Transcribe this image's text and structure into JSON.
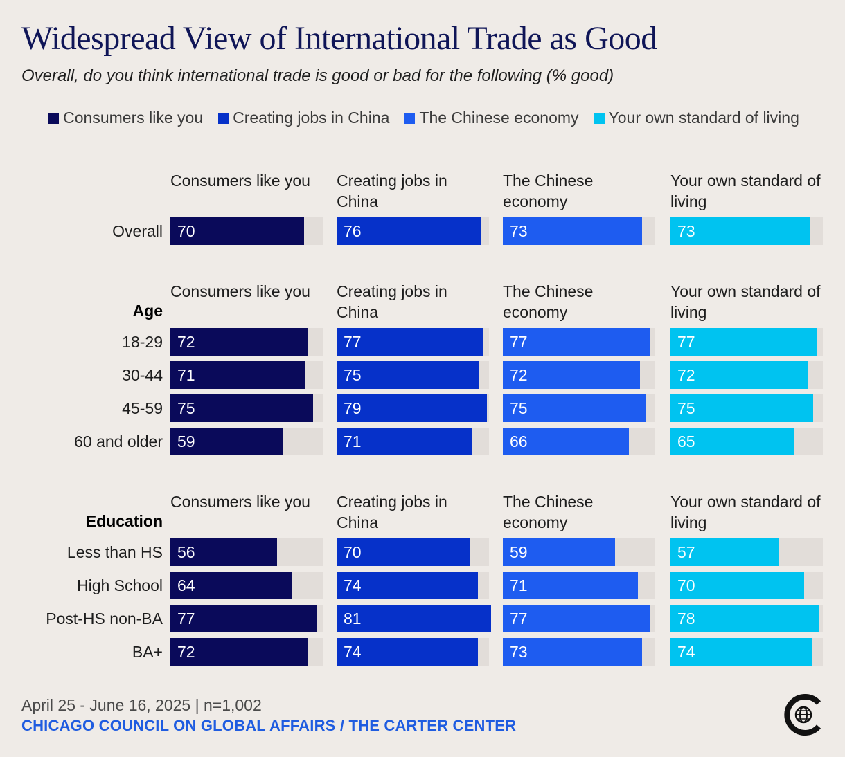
{
  "title": "Widespread View of International Trade as Good",
  "subtitle": "Overall, do you think international trade is good or bad for the following (% good)",
  "legend": [
    {
      "label": "Consumers like you",
      "color": "#0a0a5a"
    },
    {
      "label": "Creating jobs in China",
      "color": "#0631c9"
    },
    {
      "label": "The Chinese economy",
      "color": "#1e5cf0"
    },
    {
      "label": "Your own standard of living",
      "color": "#00c3f0"
    }
  ],
  "column_headers": [
    "Consumers like you",
    "Creating jobs in China",
    "The Chinese economy",
    "Your own standard of living"
  ],
  "footer": {
    "date": "April 25 - June 16, 2025 | n=1,002",
    "source": "CHICAGO COUNCIL ON GLOBAL AFFAIRS / THE CARTER CENTER"
  },
  "chart_data": {
    "type": "bar",
    "orientation": "horizontal",
    "title": "Widespread View of International Trade as Good",
    "subtitle": "Overall, do you think international trade is good or bad for the following (% good)",
    "xlim": [
      0,
      80
    ],
    "series_names": [
      "Consumers like you",
      "Creating jobs in China",
      "The Chinese economy",
      "Your own standard of living"
    ],
    "groups": [
      {
        "name": "",
        "rows": [
          {
            "label": "Overall",
            "values": [
              70,
              76,
              73,
              73
            ]
          }
        ]
      },
      {
        "name": "Age",
        "rows": [
          {
            "label": "18-29",
            "values": [
              72,
              77,
              77,
              77
            ]
          },
          {
            "label": "30-44",
            "values": [
              71,
              75,
              72,
              72
            ]
          },
          {
            "label": "45-59",
            "values": [
              75,
              79,
              75,
              75
            ]
          },
          {
            "label": "60 and older",
            "values": [
              59,
              71,
              66,
              65
            ]
          }
        ]
      },
      {
        "name": "Education",
        "rows": [
          {
            "label": "Less than HS",
            "values": [
              56,
              70,
              59,
              57
            ]
          },
          {
            "label": "High School",
            "values": [
              64,
              74,
              71,
              70
            ]
          },
          {
            "label": "Post-HS non-BA",
            "values": [
              77,
              81,
              77,
              78
            ]
          },
          {
            "label": "BA+",
            "values": [
              72,
              74,
              73,
              74
            ]
          }
        ]
      }
    ]
  }
}
